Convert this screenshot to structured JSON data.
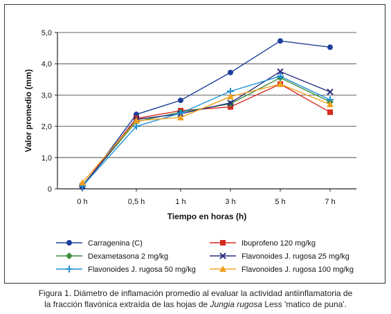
{
  "chart_data": {
    "type": "line",
    "categories": [
      "0 h",
      "0,5 h",
      "1 h",
      "3 h",
      "5 h",
      "7 h"
    ],
    "xlabel": "Tiempo en horas (h)",
    "ylabel": "Valor promedio (mm)",
    "ylim": [
      0,
      5
    ],
    "yticks": [
      "0",
      "1,0",
      "2,0",
      "3,0",
      "4,0",
      "5,0"
    ],
    "grid": true,
    "legend_position": "bottom",
    "series": [
      {
        "name": "Carragenina (C)",
        "color": "#1f3f9a",
        "marker": "circle",
        "values": [
          0.05,
          2.38,
          2.83,
          3.72,
          4.73,
          4.53
        ]
      },
      {
        "name": "Ibuprofeno 120 mg/kg",
        "color": "#d42a20",
        "marker": "square",
        "values": [
          0.1,
          2.25,
          2.5,
          2.62,
          3.35,
          2.45
        ]
      },
      {
        "name": "Dexametasona 2 mg/kg",
        "color": "#3d8c3a",
        "marker": "diamond",
        "values": [
          0.1,
          2.15,
          2.45,
          2.72,
          3.55,
          2.78
        ]
      },
      {
        "name": "Flavonoides J. rugosa  25 mg/kg",
        "color": "#2a2f80",
        "marker": "x",
        "values": [
          0.08,
          2.22,
          2.4,
          2.75,
          3.75,
          3.1
        ]
      },
      {
        "name": "Flavonoides J. rugosa 50 mg/kg",
        "color": "#1f8fd6",
        "marker": "plus",
        "values": [
          0.08,
          2.0,
          2.42,
          3.12,
          3.6,
          2.85
        ]
      },
      {
        "name": "Flavonoides  J. rugosa 100 mg/kg",
        "color": "#f0a020",
        "marker": "triangle",
        "values": [
          0.2,
          2.18,
          2.28,
          2.95,
          3.35,
          2.7
        ]
      }
    ]
  },
  "caption": {
    "line1": "Figura 1. Diámetro de inflamación promedio al evaluar la actividad antiinflamatoria de",
    "line2_prefix": "la fracción flavónica extraída de las hojas de ",
    "line2_italic": "Jungia rugosa",
    "line2_suffix": " Less 'matico de puna'."
  }
}
